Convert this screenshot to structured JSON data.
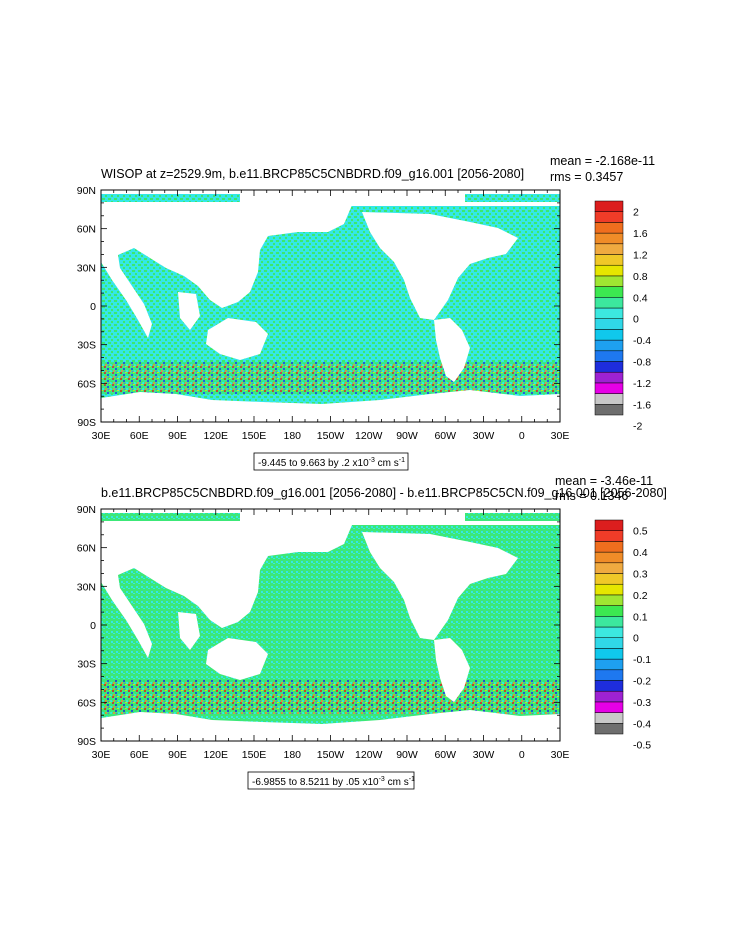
{
  "chart_data": [
    {
      "type": "heatmap",
      "title": "WISOP at z=2529.9m, b.e11.BRCP85C5CNBDRD.f09_g16.001 [2056-2080]",
      "stats": [
        "mean = -2.168e-11",
        "rms = 0.3457"
      ],
      "lat_ticks": [
        "90N",
        "60N",
        "30N",
        "0",
        "30S",
        "60S",
        "90S"
      ],
      "lon_ticks": [
        "30E",
        "60E",
        "90E",
        "120E",
        "150E",
        "180",
        "150W",
        "120W",
        "90W",
        "60W",
        "30W",
        "0",
        "30E"
      ],
      "xlim": [
        30,
        390
      ],
      "ylim": [
        -90,
        90
      ],
      "colorbar_labels": [
        "2",
        "1.6",
        "1.2",
        "0.8",
        "0.4",
        "0",
        "-0.4",
        "-0.8",
        "-1.2",
        "-1.6",
        "-2"
      ],
      "colorbar_levels": [
        -2,
        -1.8,
        -1.6,
        -1.4,
        -1.2,
        -1,
        -0.8,
        -0.6,
        -0.4,
        -0.2,
        0,
        0.2,
        0.4,
        0.6,
        0.8,
        1,
        1.2,
        1.4,
        1.6,
        1.8,
        2
      ],
      "contour_info": {
        "text": "-9.445 to 9.663 by .2 x10",
        "exp": "-3",
        "units": " cm s",
        "units_exp": "-1"
      }
    },
    {
      "type": "heatmap",
      "title": "b.e11.BRCP85C5CNBDRD.f09_g16.001 [2056-2080] - b.e11.BRCP85C5CN.f09_g16.001 [2056-2080]",
      "stats": [
        "mean = -3.46e-11",
        "rms = 0.1346"
      ],
      "lat_ticks": [
        "90N",
        "60N",
        "30N",
        "0",
        "30S",
        "60S",
        "90S"
      ],
      "lon_ticks": [
        "30E",
        "60E",
        "90E",
        "120E",
        "150E",
        "180",
        "150W",
        "120W",
        "90W",
        "60W",
        "30W",
        "0",
        "30E"
      ],
      "xlim": [
        30,
        390
      ],
      "ylim": [
        -90,
        90
      ],
      "colorbar_labels": [
        "0.5",
        "0.4",
        "0.3",
        "0.2",
        "0.1",
        "0",
        "-0.1",
        "-0.2",
        "-0.3",
        "-0.4",
        "-0.5"
      ],
      "colorbar_levels": [
        -0.5,
        -0.45,
        -0.4,
        -0.35,
        -0.3,
        -0.25,
        -0.2,
        -0.15,
        -0.1,
        -0.05,
        0,
        0.05,
        0.1,
        0.15,
        0.2,
        0.25,
        0.3,
        0.35,
        0.4,
        0.45,
        0.5
      ],
      "contour_info": {
        "text": "-6.9855 to 8.5211 by .05 x10",
        "exp": "-3",
        "units": " cm s",
        "units_exp": "-1"
      }
    }
  ],
  "colorbar_colors": [
    "#6e6e6e",
    "#c8c8c8",
    "#e600e6",
    "#9e22d2",
    "#1e2ddc",
    "#1e78f0",
    "#1ea0f0",
    "#10c8ec",
    "#30d8e8",
    "#3ce8e0",
    "#3ce89e",
    "#3ce850",
    "#a0e632",
    "#e6e600",
    "#f0c828",
    "#f0aa40",
    "#f08c28",
    "#f06e1e",
    "#f03c28",
    "#dc1e1e"
  ],
  "ocean_palette": {
    "cyan": "#33e8e6",
    "green": "#3ce86e"
  }
}
